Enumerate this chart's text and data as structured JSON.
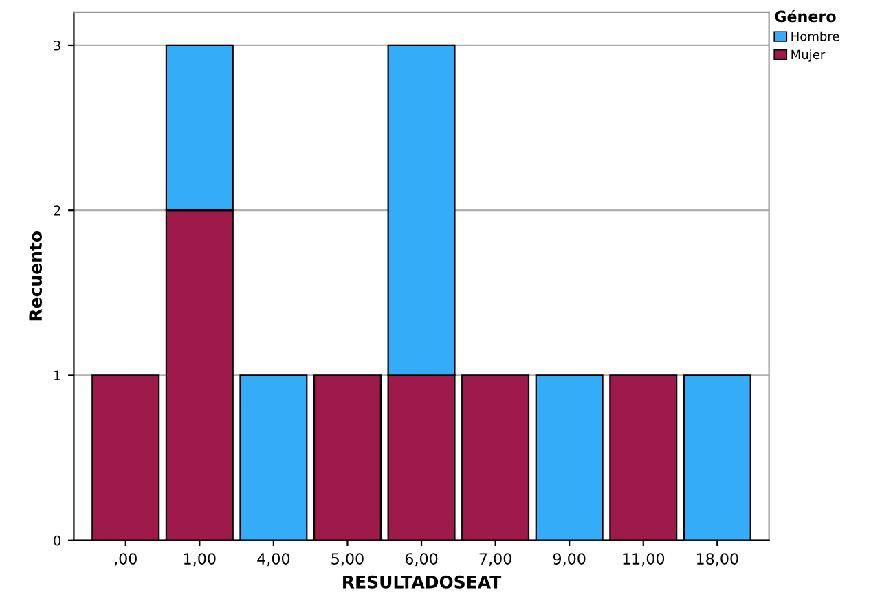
{
  "chart_data": {
    "type": "bar",
    "stacked": true,
    "xlabel": "RESULTADOSEAT",
    "ylabel": "Recuento",
    "legend_title": "Género",
    "legend": "top right",
    "categories": [
      ",00",
      "1,00",
      "4,00",
      "5,00",
      "6,00",
      "7,00",
      "9,00",
      "11,00",
      "18,00"
    ],
    "series": [
      {
        "name": "Mujer",
        "color": "#9e1a4a",
        "values": [
          1,
          2,
          null,
          1,
          1,
          1,
          null,
          1,
          null
        ]
      },
      {
        "name": "Hombre",
        "color": "#35acf8",
        "values": [
          null,
          1,
          1,
          null,
          2,
          null,
          1,
          null,
          1
        ]
      }
    ],
    "ylim": [
      0,
      3.2
    ],
    "yticks": [
      0,
      1,
      2,
      3
    ],
    "grid": "y"
  }
}
